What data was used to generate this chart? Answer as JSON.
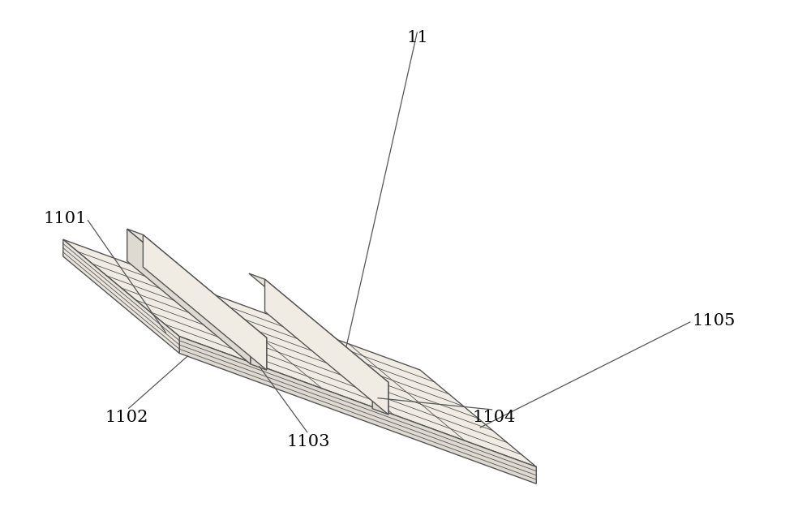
{
  "background_color": "#ffffff",
  "line_color": "#555555",
  "line_width": 1.0,
  "fill_platform_top": "#f0ece4",
  "fill_platform_front": "#dedad2",
  "fill_platform_right": "#e8e4dc",
  "fill_rail_top": "#e8e4dc",
  "fill_rail_left": "#dedad2",
  "fill_rail_right": "#f0ece4",
  "label_fontsize": 15,
  "figsize": [
    10.0,
    6.41
  ],
  "dpi": 100,
  "n_plank_lines": 7,
  "n_layer_lines": 4
}
